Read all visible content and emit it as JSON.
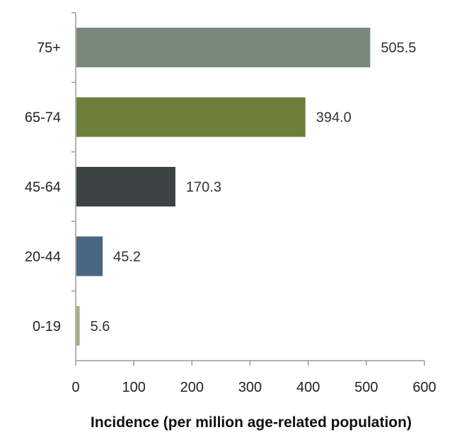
{
  "chart_data": {
    "type": "bar",
    "orientation": "horizontal",
    "categories": [
      "75+",
      "65-74",
      "45-64",
      "20-44",
      "0-19"
    ],
    "values": [
      505.5,
      394.0,
      170.3,
      45.2,
      5.6
    ],
    "value_labels": [
      "505.5",
      "394.0",
      "170.3",
      "45.2",
      "5.6"
    ],
    "bar_colors": [
      "#7a877b",
      "#6e7f3c",
      "#3d4242",
      "#4a6680",
      "#a8ad84"
    ],
    "xlabel": "Incidence (per million age-related population)",
    "ylabel": "",
    "title": "",
    "xlim": [
      0,
      600
    ],
    "xticks": [
      "0",
      "100",
      "200",
      "300",
      "400",
      "500",
      "600"
    ],
    "grid": false,
    "legend": "none"
  }
}
